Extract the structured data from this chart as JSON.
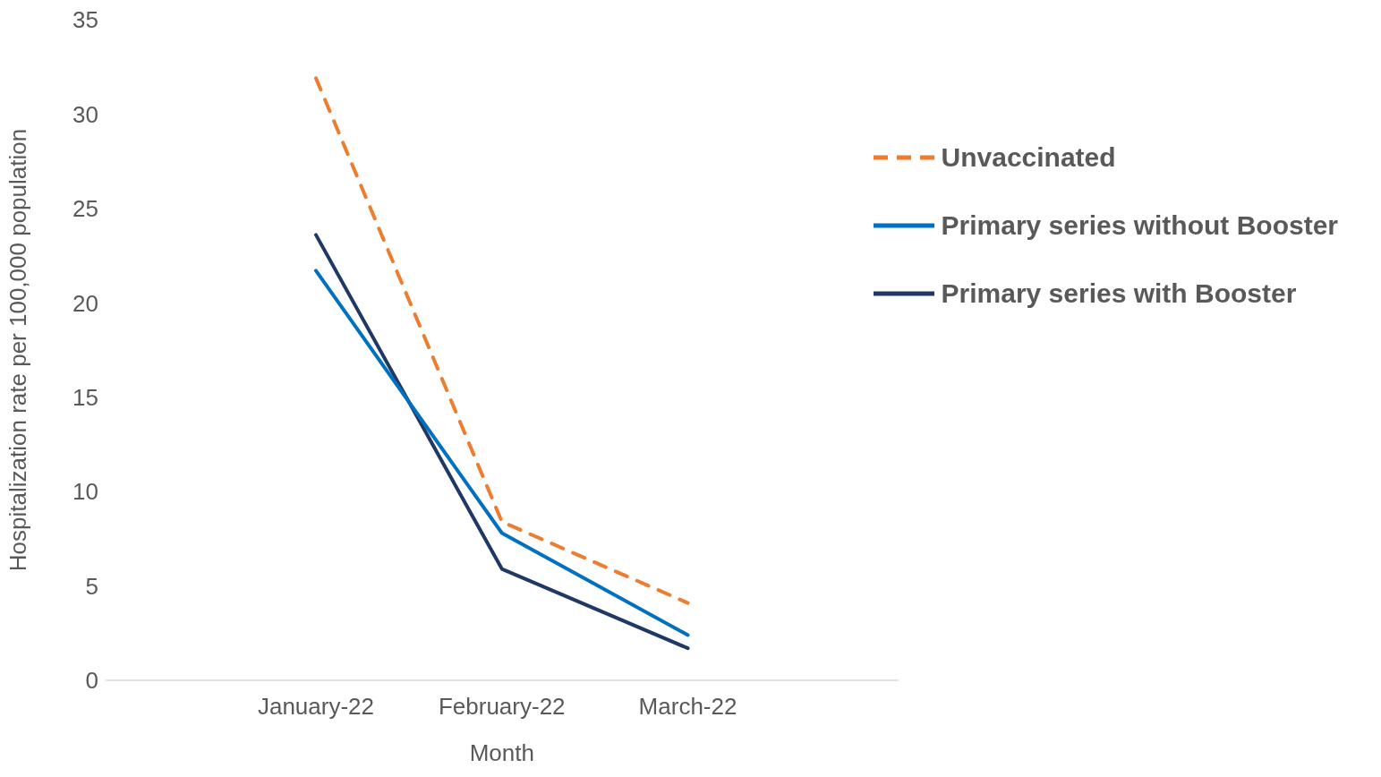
{
  "chart_data": {
    "type": "line",
    "xlabel": "Month",
    "ylabel": "Hospitalization rate per 100,000 population",
    "categories": [
      "January-22",
      "February-22",
      "March-22"
    ],
    "series": [
      {
        "name": "Unvaccinated",
        "color": "#ed7d31",
        "values": [
          31.9,
          8.4,
          4.1
        ],
        "line_style": "dashed"
      },
      {
        "name": "Primary series without Booster",
        "color": "#0070c0",
        "values": [
          21.7,
          7.8,
          2.4
        ],
        "line_style": "solid"
      },
      {
        "name": "Primary series with Booster",
        "color": "#203864",
        "values": [
          23.6,
          5.9,
          1.7
        ],
        "line_style": "solid"
      }
    ],
    "ylim": [
      0,
      35
    ],
    "yticks": [
      0,
      5,
      10,
      15,
      20,
      25,
      30,
      35
    ],
    "grid": false,
    "legend": "top right",
    "marker": "none"
  }
}
